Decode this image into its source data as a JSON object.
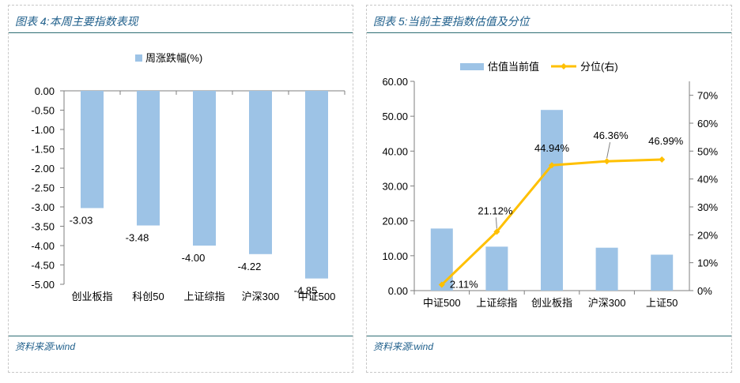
{
  "left": {
    "title": "图表 4:本周主要指数表现",
    "source": "资料来源:wind",
    "legend_label": "周涨跌幅(%)",
    "chart_data": {
      "type": "bar",
      "categories": [
        "创业板指",
        "科创50",
        "上证综指",
        "沪深300",
        "中证500"
      ],
      "series": [
        {
          "name": "周涨跌幅(%)",
          "values": [
            -3.03,
            -3.48,
            -4.0,
            -4.22,
            -4.85
          ]
        }
      ],
      "data_labels": [
        "-3.03",
        "-3.48",
        "-4.00",
        "-4.22",
        "-4.85"
      ],
      "ylim": [
        -5.0,
        0.0
      ],
      "yticks": [
        "0.00",
        "-0.50",
        "-1.00",
        "-1.50",
        "-2.00",
        "-2.50",
        "-3.00",
        "-3.50",
        "-4.00",
        "-4.50",
        "-5.00"
      ],
      "bar_color": "#9dc3e6",
      "legend": "top-center",
      "grid": false
    }
  },
  "right": {
    "title": "图表 5:当前主要指数估值及分位",
    "source": "资料来源:wind",
    "legend_bar": "估值当前值",
    "legend_line": "分位(右)",
    "chart_data": {
      "type": "bar",
      "categories": [
        "中证500",
        "上证综指",
        "创业板指",
        "沪深300",
        "上证50"
      ],
      "series": [
        {
          "name": "估值当前值",
          "type": "bar",
          "axis": "left",
          "values": [
            17.8,
            12.6,
            51.8,
            12.3,
            10.3
          ]
        },
        {
          "name": "分位(右)",
          "type": "line",
          "axis": "right",
          "values": [
            2.11,
            21.12,
            44.94,
            46.36,
            46.99
          ]
        }
      ],
      "line_labels": [
        "2.11%",
        "21.12%",
        "44.94%",
        "46.36%",
        "46.99%"
      ],
      "ylim": [
        0,
        60
      ],
      "y2lim": [
        0,
        75
      ],
      "yticks": [
        "60.00",
        "50.00",
        "40.00",
        "30.00",
        "20.00",
        "10.00",
        "0.00"
      ],
      "y2ticks": [
        "70%",
        "60%",
        "50%",
        "40%",
        "30%",
        "20%",
        "10%",
        "0%"
      ],
      "bar_color": "#9dc3e6",
      "line_color": "#ffc000",
      "legend": "top-center",
      "grid": false
    }
  }
}
